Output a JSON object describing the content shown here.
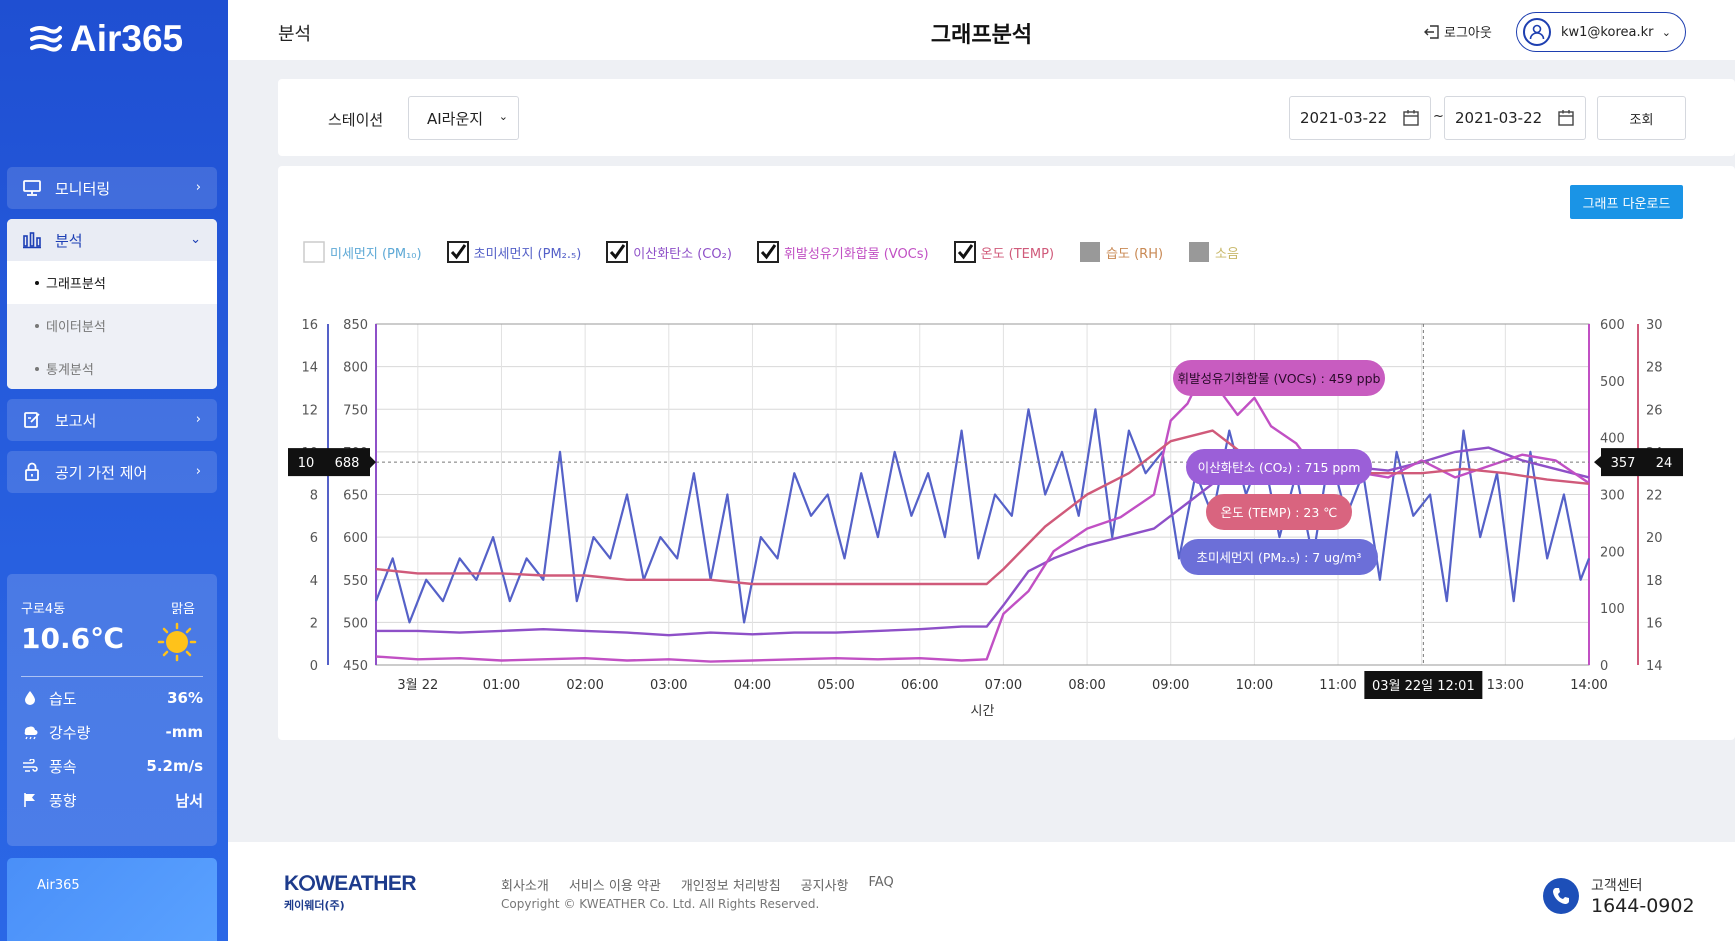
{
  "app": {
    "logo_text": "Air365"
  },
  "sidebar": {
    "menu": [
      {
        "label": "모니터링",
        "icon": "monitor-icon"
      },
      {
        "label": "분석",
        "icon": "bar-chart-icon",
        "expanded": true,
        "sub_items": [
          {
            "label": "그래프분석",
            "active": true
          },
          {
            "label": "데이터분석",
            "active": false
          },
          {
            "label": "통계분석",
            "active": false
          }
        ]
      },
      {
        "label": "보고서",
        "icon": "report-edit-icon"
      },
      {
        "label": "공기 가전 제어",
        "icon": "lock-icon"
      }
    ],
    "weather": {
      "location": "구로4동",
      "condition": "맑음",
      "temperature": "10.6℃",
      "rows": [
        {
          "label": "습도",
          "value": "36%",
          "icon": "drop-icon"
        },
        {
          "label": "강수량",
          "value": "-mm",
          "icon": "rain-icon"
        },
        {
          "label": "풍속",
          "value": "5.2m/s",
          "icon": "wind-icon"
        },
        {
          "label": "풍향",
          "value": "남서",
          "icon": "flag-icon"
        }
      ]
    },
    "promo": {
      "title": "Air365"
    }
  },
  "header": {
    "breadcrumb": "분석",
    "title": "그래프분석",
    "logout_label": "로그아웃",
    "user_email": "kw1@korea.kr"
  },
  "filters": {
    "station_label": "스테이션",
    "station_value": "AI라운지",
    "date_from": "2021-03-22",
    "date_sep": "~",
    "date_to": "2021-03-22",
    "search_label": "조회"
  },
  "chart_panel": {
    "download_label": "그래프 다운로드",
    "legend": [
      {
        "label": "미세먼지 (PM₁₀)",
        "checked": false,
        "disabled": false,
        "color": "#5ea9d6"
      },
      {
        "label": "초미세먼지 (PM₂.₅)",
        "checked": true,
        "disabled": false,
        "color": "#5561c8"
      },
      {
        "label": "이산화탄소 (CO₂)",
        "checked": true,
        "disabled": false,
        "color": "#8e50c8"
      },
      {
        "label": "휘발성유기화합물 (VOCs)",
        "checked": true,
        "disabled": false,
        "color": "#c150c4"
      },
      {
        "label": "온도 (TEMP)",
        "checked": true,
        "disabled": false,
        "color": "#d05a7a"
      },
      {
        "label": "습도 (RH)",
        "checked": false,
        "disabled": true,
        "color": "#c98a55"
      },
      {
        "label": "소음",
        "checked": false,
        "disabled": true,
        "color": "#c8b86a"
      }
    ]
  },
  "chart_data": {
    "type": "line",
    "xlabel": "시간",
    "x_ticks": [
      "3월 22",
      "01:00",
      "02:00",
      "03:00",
      "04:00",
      "05:00",
      "06:00",
      "07:00",
      "08:00",
      "09:00",
      "10:00",
      "11:00",
      "12:00",
      "13:00",
      "14:00"
    ],
    "x_range_hours": [
      -0.5,
      14.0
    ],
    "axes": {
      "pm25": {
        "ticks": [
          0,
          2,
          4,
          6,
          8,
          10,
          12,
          14,
          16
        ],
        "range": [
          0,
          16
        ],
        "color": "#5561c8"
      },
      "co2": {
        "ticks": [
          450,
          500,
          550,
          600,
          650,
          700,
          750,
          800,
          850
        ],
        "range": [
          450,
          850
        ],
        "color": "#8e50c8"
      },
      "vocs": {
        "ticks": [
          0,
          100,
          200,
          300,
          400,
          500,
          600
        ],
        "range": [
          0,
          600
        ],
        "color": "#c150c4"
      },
      "temp": {
        "ticks": [
          14,
          16,
          18,
          20,
          22,
          24,
          26,
          28,
          30
        ],
        "range": [
          14,
          30
        ],
        "color": "#d05a7a"
      }
    },
    "crosshair": {
      "x_label": "03월 22일 12:01",
      "left_readout": [
        "10",
        "688"
      ],
      "right_readout": [
        "357",
        "24"
      ],
      "y_value_co2": 688
    },
    "tooltips": [
      {
        "text": "휘발성유기화합물 (VOCs) : 459 ppb",
        "color": "#c85cc0"
      },
      {
        "text": "이산화탄소 (CO₂) : 715 ppm",
        "color": "#9b5fd8"
      },
      {
        "text": "온도 (TEMP) : 23 ℃",
        "color": "#d9647f"
      },
      {
        "text": "초미세먼지 (PM₂.₅) : 7 ug/m³",
        "color": "#6c6fd8"
      }
    ],
    "series": [
      {
        "name": "초미세먼지 (PM₂.₅)",
        "axis": "pm25",
        "x": [
          -0.5,
          -0.3,
          -0.1,
          0.1,
          0.3,
          0.5,
          0.7,
          0.9,
          1.1,
          1.3,
          1.5,
          1.7,
          1.9,
          2.1,
          2.3,
          2.5,
          2.7,
          2.9,
          3.1,
          3.3,
          3.5,
          3.7,
          3.9,
          4.1,
          4.3,
          4.5,
          4.7,
          4.9,
          5.1,
          5.3,
          5.5,
          5.7,
          5.9,
          6.1,
          6.3,
          6.5,
          6.7,
          6.9,
          7.1,
          7.3,
          7.5,
          7.7,
          7.9,
          8.1,
          8.3,
          8.5,
          8.7,
          8.9,
          9.1,
          9.3,
          9.5,
          9.7,
          9.9,
          10.1,
          10.3,
          10.5,
          10.7,
          10.9,
          11.1,
          11.3,
          11.5,
          11.7,
          11.9,
          12.1,
          12.3,
          12.5,
          12.7,
          12.9,
          13.1,
          13.3,
          13.5,
          13.7,
          13.9,
          14.0
        ],
        "values": [
          3,
          5,
          2,
          4,
          3,
          5,
          4,
          6,
          3,
          5,
          4,
          10,
          3,
          6,
          5,
          8,
          4,
          6,
          5,
          9,
          4,
          8,
          2,
          6,
          5,
          9,
          7,
          8,
          5,
          9,
          6,
          10,
          7,
          9,
          6,
          11,
          5,
          8,
          7,
          12,
          8,
          10,
          7,
          12,
          6,
          11,
          9,
          10,
          5,
          9,
          7,
          11,
          8,
          10,
          6,
          9,
          5,
          10,
          7,
          9,
          4,
          10,
          7,
          8,
          3,
          11,
          6,
          9,
          3,
          10,
          5,
          8,
          4,
          5
        ]
      },
      {
        "name": "이산화탄소 (CO₂)",
        "axis": "co2",
        "x": [
          -0.5,
          0,
          0.5,
          1,
          1.5,
          2,
          2.5,
          3,
          3.5,
          4,
          4.5,
          5,
          5.5,
          6,
          6.5,
          6.8,
          7,
          7.3,
          7.6,
          8,
          8.4,
          8.8,
          9.2,
          9.6,
          10,
          10.4,
          10.8,
          11.2,
          11.6,
          12,
          12.4,
          12.8,
          13.2,
          13.6,
          14.0
        ],
        "values": [
          490,
          490,
          488,
          490,
          492,
          490,
          488,
          485,
          488,
          486,
          488,
          488,
          490,
          492,
          495,
          495,
          520,
          560,
          575,
          590,
          600,
          610,
          640,
          670,
          675,
          680,
          690,
          682,
          678,
          688,
          700,
          705,
          690,
          680,
          670
        ]
      },
      {
        "name": "휘발성유기화합물 (VOCs)",
        "axis": "vocs",
        "x": [
          -0.5,
          0,
          0.5,
          1,
          1.5,
          2,
          2.5,
          3,
          3.5,
          4,
          4.5,
          5,
          5.5,
          6,
          6.5,
          6.8,
          7,
          7.3,
          7.6,
          8,
          8.4,
          8.8,
          9,
          9.2,
          9.4,
          9.6,
          9.8,
          10,
          10.2,
          10.5,
          10.8,
          11.2,
          11.6,
          12,
          12.4,
          12.8,
          13.2,
          13.6,
          14.0
        ],
        "values": [
          15,
          10,
          12,
          8,
          10,
          12,
          8,
          10,
          6,
          8,
          10,
          12,
          10,
          12,
          8,
          10,
          90,
          130,
          200,
          240,
          260,
          300,
          430,
          460,
          520,
          480,
          440,
          470,
          420,
          390,
          330,
          340,
          330,
          360,
          330,
          350,
          370,
          360,
          320
        ]
      },
      {
        "name": "온도 (TEMP)",
        "axis": "temp",
        "x": [
          -0.5,
          0,
          0.5,
          1,
          1.5,
          2,
          2.5,
          3,
          3.5,
          4,
          4.5,
          5,
          5.5,
          6,
          6.5,
          6.8,
          7,
          7.5,
          8,
          8.5,
          9,
          9.5,
          10,
          10.5,
          11,
          11.5,
          12,
          12.5,
          13,
          13.5,
          14.0
        ],
        "values": [
          18.5,
          18.3,
          18.3,
          18.3,
          18.2,
          18.2,
          18.0,
          18.0,
          18.0,
          17.8,
          17.8,
          17.8,
          17.8,
          17.8,
          17.8,
          17.8,
          18.5,
          20.5,
          22.0,
          23.0,
          24.5,
          25.0,
          23.5,
          23.2,
          23.0,
          23.0,
          23.0,
          23.2,
          23.0,
          22.7,
          22.5
        ]
      }
    ]
  },
  "footer": {
    "brand": "K⭘WEATHER",
    "brand_sub": "케이웨더(주)",
    "links": [
      "회사소개",
      "서비스 이용 약관",
      "개인정보 처리방침",
      "공지사항",
      "FAQ"
    ],
    "copyright": "Copyright © KWEATHER Co. Ltd. All Rights Reserved.",
    "cs_label": "고객센터",
    "cs_number": "1644-0902"
  }
}
